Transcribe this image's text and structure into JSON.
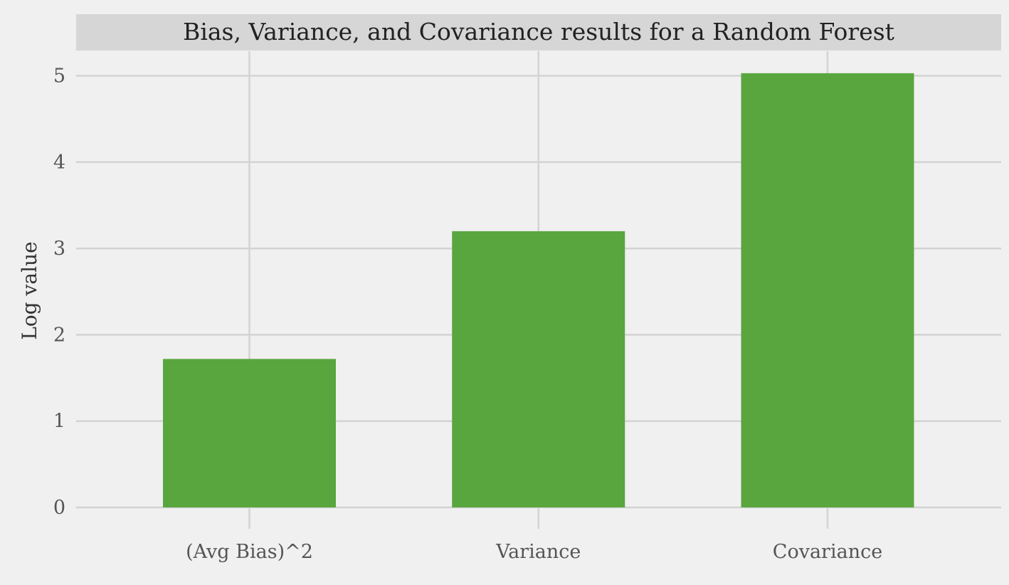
{
  "chart_data": {
    "type": "bar",
    "title": "Bias, Variance, and Covariance results for a Random Forest",
    "xlabel": "",
    "ylabel": "Log value",
    "categories": [
      "(Avg Bias)^2",
      "Variance",
      "Covariance"
    ],
    "values": [
      1.72,
      3.2,
      5.03
    ],
    "ylim": [
      0,
      5.3
    ],
    "yticks": [
      0,
      1,
      2,
      3,
      4,
      5
    ],
    "grid": true,
    "bar_color": "#59a63f",
    "grid_color": "#d3d3d3",
    "title_bg_color": "#d6d6d6",
    "background_color": "#f0f0f0"
  }
}
